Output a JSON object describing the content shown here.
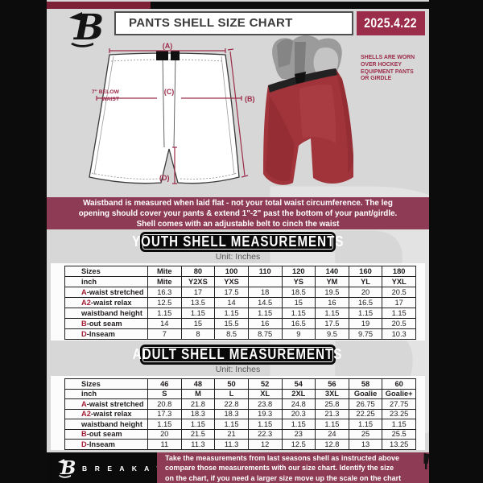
{
  "header": {
    "title": "PANTS SHELL SIZE CHART",
    "date": "2025.4.22"
  },
  "diagram": {
    "label_a": "(A)",
    "label_b": "(B)",
    "label_c": "(C)",
    "label_d": "(D)",
    "waist_note": "7\" BELOW\nWAIST",
    "photo_caption": "SHELLS ARE WORN\nOVER HOCKEY\nEQUIPMENT PANTS\nOR GIRDLE"
  },
  "banner": {
    "text": "Waistband is measured when laid flat - not your total waist circumference. The leg\nopening should cover your pants & extend 1\"-2\" past the bottom of your pant/girdle.\nShell comes with an adjustable belt to cinch the waist"
  },
  "youth": {
    "title": "YOUTH SHELL MEASUREMENTS",
    "unit": "Unit: Inches",
    "rows": [
      {
        "prefix": "",
        "label": "Sizes",
        "header": true,
        "values": [
          "Mite",
          "80",
          "100",
          "110",
          "120",
          "140",
          "160",
          "180"
        ]
      },
      {
        "prefix": "",
        "label": "inch",
        "header": true,
        "values": [
          "Mite",
          "Y2XS",
          "YXS",
          "",
          "YS",
          "YM",
          "YL",
          "YXL"
        ]
      },
      {
        "prefix": "A",
        "label": "-waist stretched",
        "values": [
          "16.3",
          "17",
          "17.5",
          "18",
          "18.5",
          "19.5",
          "20",
          "20.5"
        ]
      },
      {
        "prefix": "A2",
        "label": "-waist relax",
        "values": [
          "12.5",
          "13.5",
          "14",
          "14.5",
          "15",
          "16",
          "16.5",
          "17"
        ]
      },
      {
        "prefix": "",
        "label": "waistband height",
        "values": [
          "1.15",
          "1.15",
          "1.15",
          "1.15",
          "1.15",
          "1.15",
          "1.15",
          "1.15"
        ]
      },
      {
        "prefix": "B",
        "label": "-out seam",
        "values": [
          "14",
          "15",
          "15.5",
          "16",
          "16.5",
          "17.5",
          "19",
          "20.5"
        ]
      },
      {
        "prefix": "D",
        "label": "-Inseam",
        "values": [
          "7",
          "8",
          "8.5",
          "8.75",
          "9",
          "9.5",
          "9.75",
          "10.3"
        ]
      }
    ]
  },
  "adult": {
    "title": "ADULT SHELL MEASUREMENTS",
    "unit": "Unit: Inches",
    "rows": [
      {
        "prefix": "",
        "label": "Sizes",
        "header": true,
        "values": [
          "46",
          "48",
          "50",
          "52",
          "54",
          "56",
          "58",
          "60"
        ]
      },
      {
        "prefix": "",
        "label": "inch",
        "header": true,
        "values": [
          "S",
          "M",
          "L",
          "XL",
          "2XL",
          "3XL",
          "Goalie",
          "Goalie+"
        ]
      },
      {
        "prefix": "A",
        "label": "-waist stretched",
        "values": [
          "20.8",
          "21.8",
          "22.8",
          "23.8",
          "24.8",
          "25.8",
          "26.75",
          "27.75"
        ]
      },
      {
        "prefix": "A2",
        "label": "-waist relax",
        "values": [
          "17.3",
          "18.3",
          "18.3",
          "19.3",
          "20.3",
          "21.3",
          "22.25",
          "23.25"
        ]
      },
      {
        "prefix": "",
        "label": "waistband height",
        "values": [
          "1.15",
          "1.15",
          "1.15",
          "1.15",
          "1.15",
          "1.15",
          "1.15",
          "1.15"
        ]
      },
      {
        "prefix": "B",
        "label": "-out seam",
        "values": [
          "20",
          "21.5",
          "21",
          "22.3",
          "23",
          "24",
          "25",
          "25.5"
        ]
      },
      {
        "prefix": "D",
        "label": "-Inseam",
        "values": [
          "11",
          "11.3",
          "11.3",
          "12",
          "12.5",
          "12.8",
          "13",
          "13.25"
        ]
      }
    ]
  },
  "footer": {
    "brand": "B R E A K A W A Y",
    "note": "Take the measurements from last seasons shell as instructed above\ncompare those measurements  with our size chart. Identify the size\non the chart, if you need a larger size move up the scale on the chart"
  },
  "colors": {
    "page_bg": "#d7d7d7",
    "strip_maroon": "#7c2136",
    "date_bg": "#9b2c4a",
    "banner_maroon": "#8e3b56",
    "label_maroon": "#9b2c4a",
    "accent_red": "#a41e35"
  }
}
